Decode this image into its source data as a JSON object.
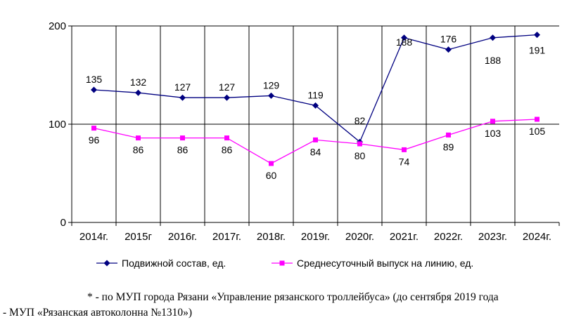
{
  "chart_data": {
    "type": "line",
    "categories": [
      "2014г.",
      "2015г",
      "2016г.",
      "2017г.",
      "2018г.",
      "2019г.",
      "2020г.",
      "2021г.",
      "2022г.",
      "2023г.",
      "2024г."
    ],
    "ylim": [
      0,
      200
    ],
    "yticks": [
      0,
      100,
      200
    ],
    "grid": "vertical lines at category boundaries, horizontal lines at 100 and 200",
    "legend_position": "bottom",
    "series": [
      {
        "name": "Подвижной состав, ед.",
        "color": "#000080",
        "marker": "diamond",
        "values": [
          135,
          132,
          127,
          127,
          129,
          119,
          82,
          188,
          176,
          188,
          191
        ]
      },
      {
        "name": "Среднесуточный выпуск на линию, ед.",
        "color": "#FF00FF",
        "marker": "square",
        "values": [
          96,
          86,
          86,
          86,
          60,
          84,
          80,
          74,
          89,
          103,
          105
        ]
      }
    ]
  },
  "footnote": {
    "line1": "* - по МУП города Рязани «Управление рязанского троллейбуса» (до сентября 2019 года",
    "line2": "- МУП «Рязанская автоколонна №1310»)"
  }
}
